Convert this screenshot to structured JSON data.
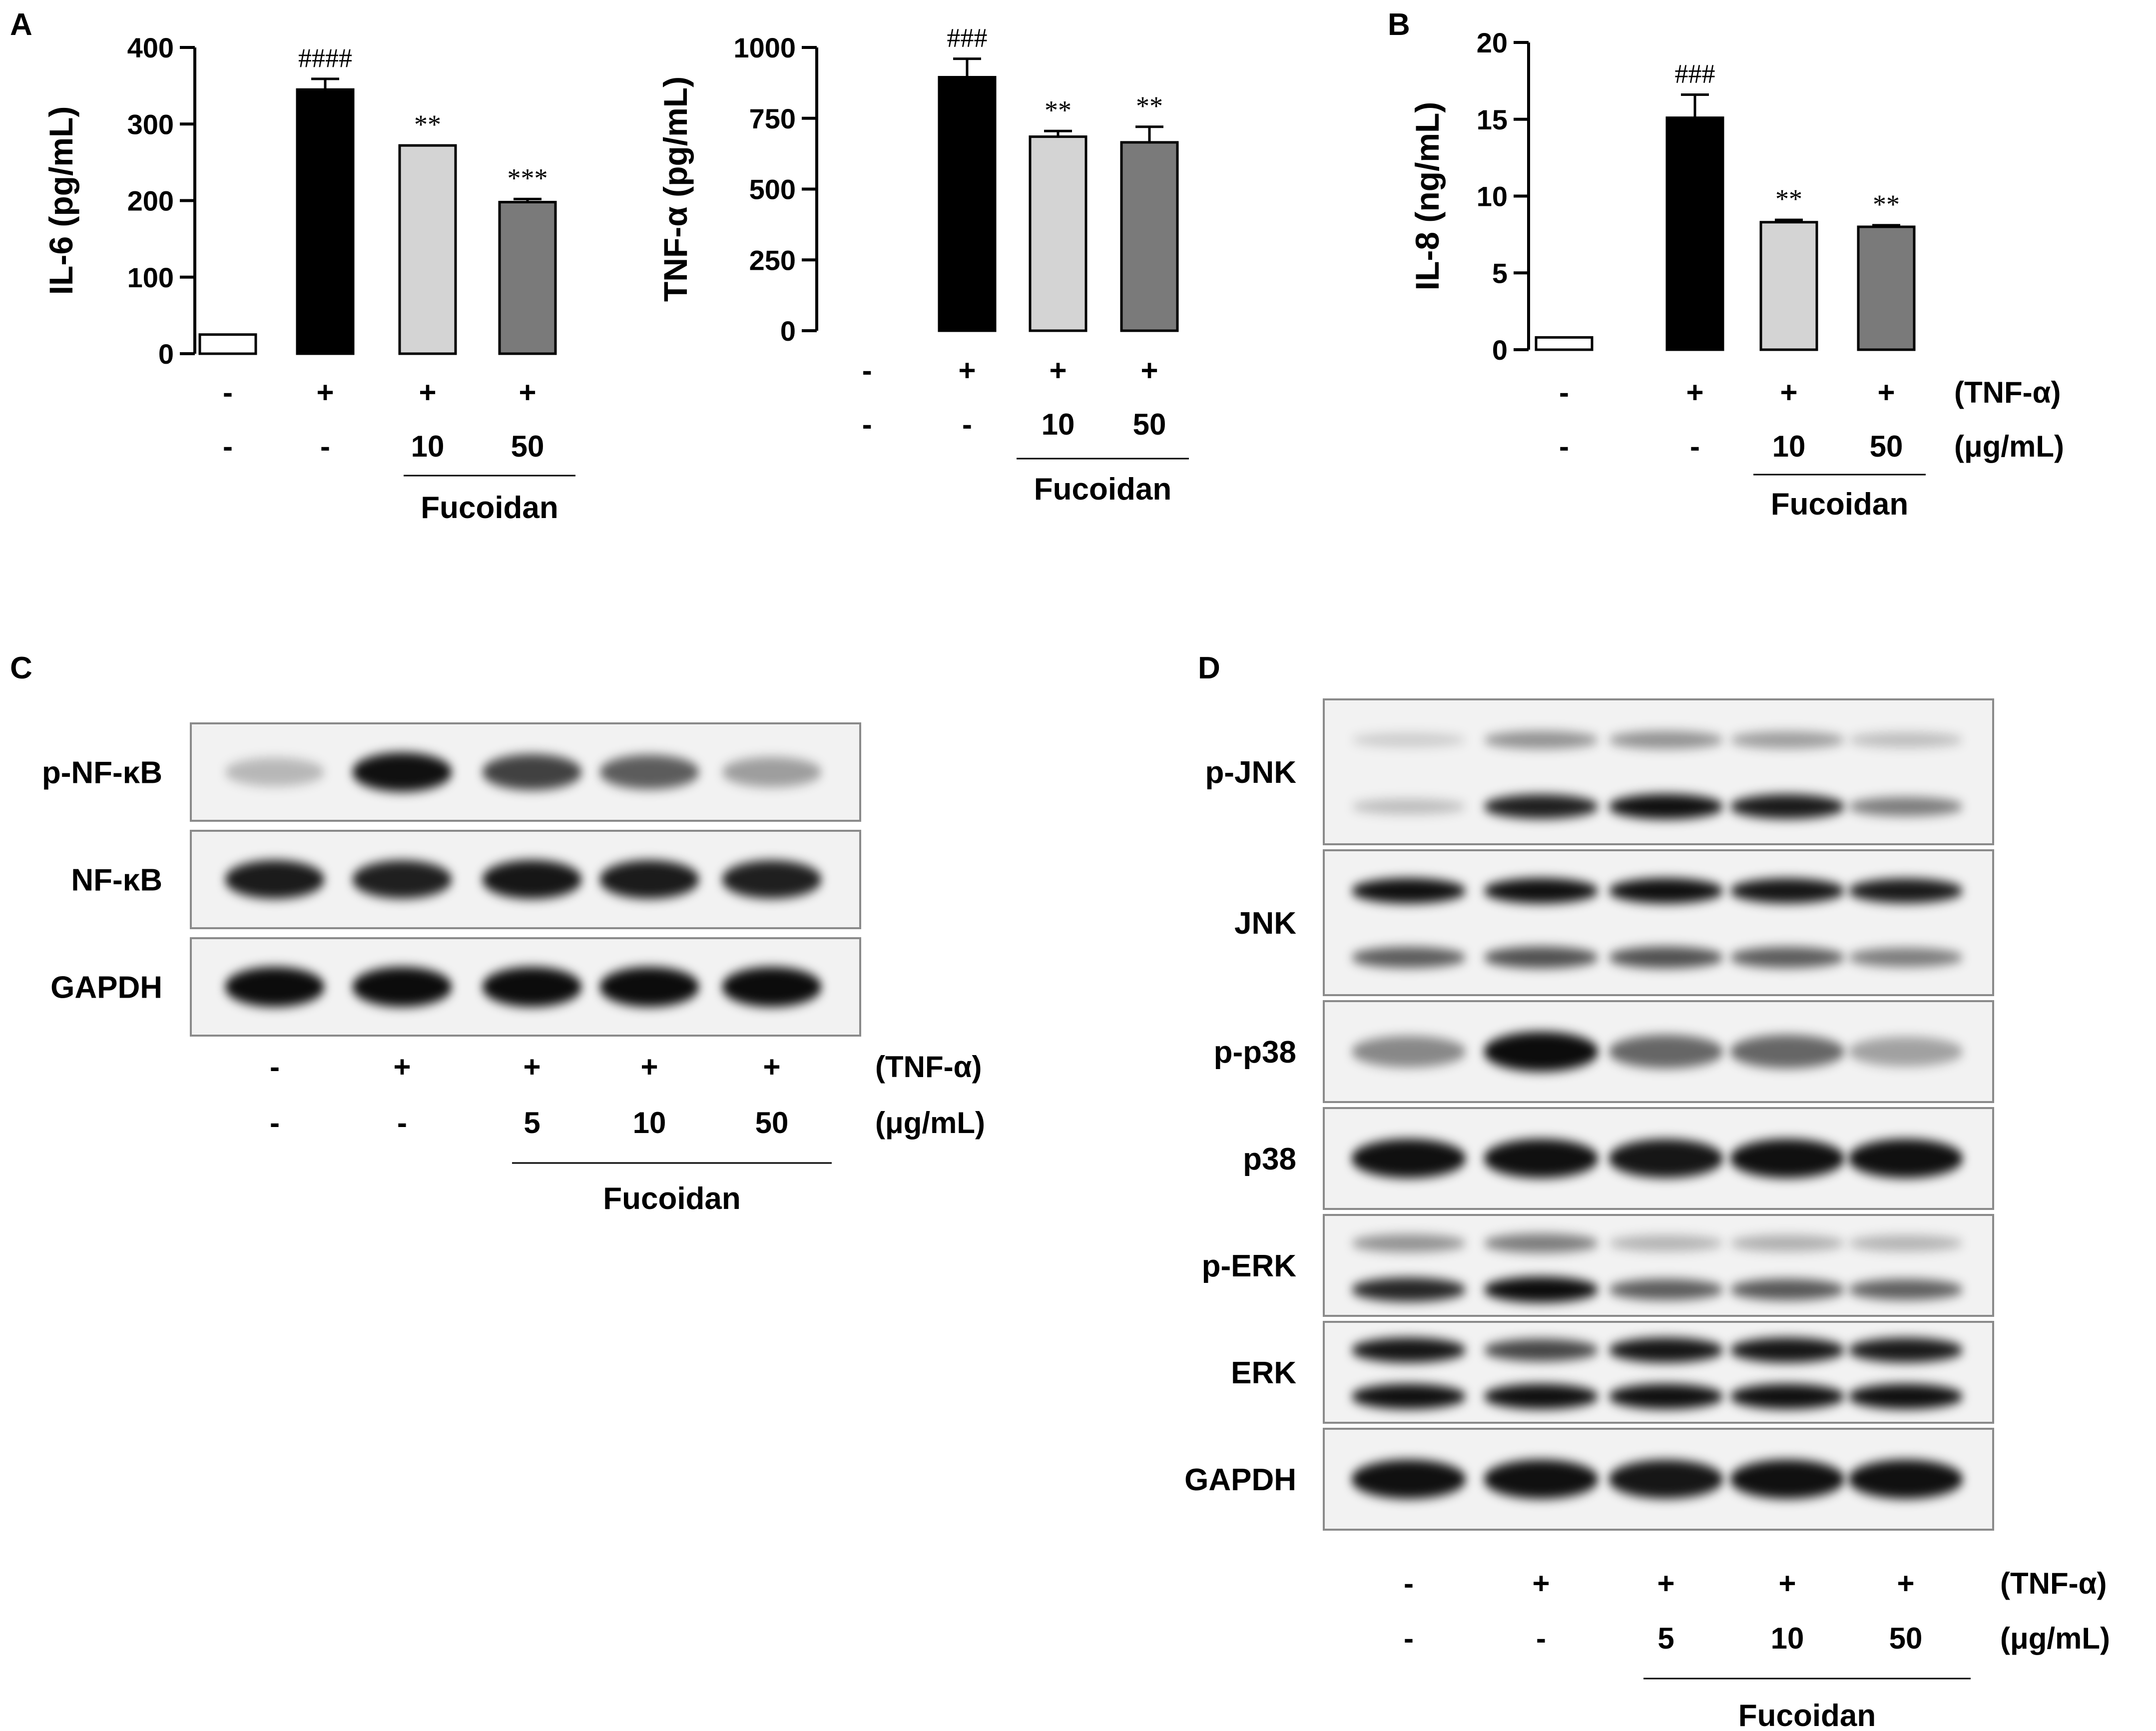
{
  "panel_labels": [
    "A",
    "B",
    "C",
    "D"
  ],
  "treatment_rows": {
    "tnf": {
      "label": "(TNF-α)"
    },
    "dose": {
      "label": "(μg/mL)"
    },
    "group_label": "Fucoidan"
  },
  "chart_data": [
    {
      "type": "bar",
      "panel": "A",
      "ylabel": "IL-6 (pg/mL)",
      "ylim": [
        0,
        400
      ],
      "yticks": [
        "0",
        "100",
        "200",
        "300",
        "400"
      ],
      "categories": [
        "control",
        "TNF-α",
        "TNF-α + Fucoidan 10",
        "TNF-α + Fucoidan 50"
      ],
      "values": [
        25,
        345,
        272,
        198
      ],
      "errors": [
        0,
        14,
        0,
        4
      ],
      "bar_colors": [
        "#ffffff",
        "#000000",
        "#d4d4d4",
        "#7a7a7a"
      ],
      "significance": [
        "",
        "####",
        "**",
        "***"
      ],
      "row_tnf": [
        "-",
        "+",
        "+",
        "+"
      ],
      "row_dose": [
        "-",
        "-",
        "10",
        "50"
      ],
      "group_label": "Fucoidan"
    },
    {
      "type": "bar",
      "panel": "A",
      "ylabel": "TNF-α (pg/mL)",
      "ylim": [
        0,
        1000
      ],
      "yticks": [
        "0",
        "250",
        "500",
        "750",
        "1000"
      ],
      "categories": [
        "control",
        "TNF-α",
        "TNF-α + Fucoidan 10",
        "TNF-α + Fucoidan 50"
      ],
      "values": [
        0,
        895,
        685,
        665
      ],
      "errors": [
        0,
        65,
        20,
        55
      ],
      "bar_colors": [
        "#ffffff",
        "#000000",
        "#d4d4d4",
        "#7a7a7a"
      ],
      "significance": [
        "",
        "###",
        "**",
        "**"
      ],
      "row_tnf": [
        "-",
        "+",
        "+",
        "+"
      ],
      "row_dose": [
        "-",
        "-",
        "10",
        "50"
      ],
      "group_label": "Fucoidan"
    },
    {
      "type": "bar",
      "panel": "B",
      "ylabel": "IL-8 (ng/mL)",
      "ylim": [
        0,
        20
      ],
      "yticks": [
        "0",
        "5",
        "10",
        "15",
        "20"
      ],
      "categories": [
        "control",
        "TNF-α",
        "TNF-α + Fucoidan 10",
        "TNF-α + Fucoidan 50"
      ],
      "values": [
        0.8,
        15.1,
        8.3,
        8.0
      ],
      "errors": [
        0,
        1.5,
        0.15,
        0.1
      ],
      "bar_colors": [
        "#ffffff",
        "#000000",
        "#d4d4d4",
        "#7a7a7a"
      ],
      "significance": [
        "",
        "###",
        "**",
        "**"
      ],
      "row_tnf": [
        "-",
        "+",
        "+",
        "+"
      ],
      "row_dose": [
        "-",
        "-",
        "10",
        "50"
      ],
      "group_label": "Fucoidan"
    }
  ],
  "blots": [
    {
      "panel": "C",
      "row_tnf": [
        "-",
        "+",
        "+",
        "+",
        "+"
      ],
      "row_dose": [
        "-",
        "-",
        "5",
        "10",
        "50"
      ],
      "group_label": "Fucoidan",
      "proteins": [
        {
          "label": "p-NF-κB",
          "bands": [
            [
              0.18,
              0.95,
              0.72,
              0.6,
              0.3
            ]
          ]
        },
        {
          "label": "NF-κB",
          "bands": [
            [
              0.9,
              0.88,
              0.92,
              0.9,
              0.88
            ]
          ]
        },
        {
          "label": "GAPDH",
          "bands": [
            [
              1.0,
              1.0,
              1.0,
              1.0,
              1.0
            ]
          ]
        }
      ]
    },
    {
      "panel": "D",
      "row_tnf": [
        "-",
        "+",
        "+",
        "+",
        "+"
      ],
      "row_dose": [
        "-",
        "-",
        "5",
        "10",
        "50"
      ],
      "group_label": "Fucoidan",
      "proteins": [
        {
          "label": "p-JNK",
          "bands": [
            [
              0.08,
              0.35,
              0.35,
              0.3,
              0.15
            ],
            [
              0.15,
              0.88,
              0.95,
              0.9,
              0.45
            ]
          ]
        },
        {
          "label": "JNK",
          "bands": [
            [
              0.95,
              0.95,
              0.95,
              0.92,
              0.9
            ],
            [
              0.6,
              0.65,
              0.65,
              0.6,
              0.45
            ]
          ]
        },
        {
          "label": "p-p38",
          "bands": [
            [
              0.4,
              1.0,
              0.55,
              0.55,
              0.28
            ]
          ]
        },
        {
          "label": "p38",
          "bands": [
            [
              0.95,
              0.95,
              0.92,
              0.95,
              0.95
            ]
          ]
        },
        {
          "label": "p-ERK",
          "bands": [
            [
              0.35,
              0.45,
              0.2,
              0.22,
              0.2
            ],
            [
              0.85,
              1.0,
              0.6,
              0.62,
              0.58
            ]
          ]
        },
        {
          "label": "ERK",
          "bands": [
            [
              0.92,
              0.7,
              0.92,
              0.92,
              0.9
            ],
            [
              0.95,
              0.95,
              0.95,
              0.95,
              0.95
            ]
          ]
        },
        {
          "label": "GAPDH",
          "bands": [
            [
              0.95,
              0.95,
              0.92,
              0.95,
              0.95
            ]
          ]
        }
      ]
    }
  ]
}
